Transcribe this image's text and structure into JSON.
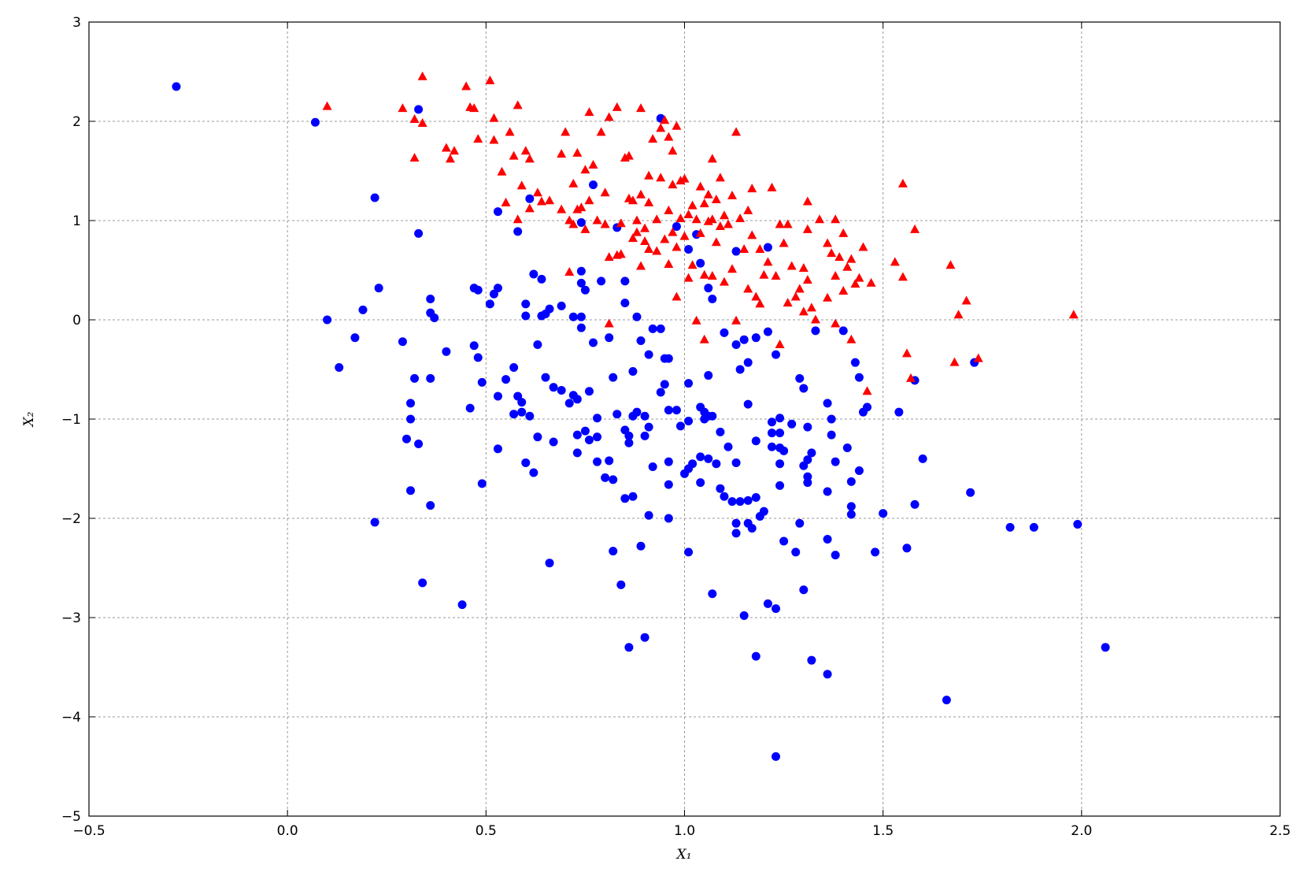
{
  "chart_data": {
    "type": "scatter",
    "x_label": "X₁",
    "y_label": "X₂",
    "xlim": [
      -0.5,
      2.5
    ],
    "ylim": [
      -5,
      3
    ],
    "xticks": [
      {
        "value": -0.5,
        "label": "−0.5"
      },
      {
        "value": 0,
        "label": "0.0"
      },
      {
        "value": 0.5,
        "label": "0.5"
      },
      {
        "value": 1,
        "label": "1.0"
      },
      {
        "value": 1.5,
        "label": "1.5"
      },
      {
        "value": 2,
        "label": "2.0"
      },
      {
        "value": 2.5,
        "label": "2.5"
      }
    ],
    "yticks": [
      {
        "value": -5,
        "label": "−5"
      },
      {
        "value": -4,
        "label": "−4"
      },
      {
        "value": -3,
        "label": "−3"
      },
      {
        "value": -2,
        "label": "−2"
      },
      {
        "value": -1,
        "label": "−1"
      },
      0,
      1,
      2,
      3
    ],
    "grid": true,
    "series": [
      {
        "color": "#0000ff",
        "marker": "o",
        "x": [
          -0.28,
          0.07,
          0.33,
          0.22,
          0.33,
          0.1,
          0.13,
          0.17,
          0.19,
          0.23,
          0.29,
          0.3,
          0.31,
          0.31,
          0.32,
          0.33,
          0.31,
          0.22,
          0.34,
          0.36,
          0.36,
          0.37,
          0.36,
          0.36,
          0.4,
          0.44,
          0.46,
          0.47,
          0.48,
          0.47,
          0.48,
          0.49,
          0.49,
          0.51,
          0.52,
          0.53,
          0.53,
          0.53,
          0.53,
          0.55,
          0.57,
          0.57,
          0.58,
          0.58,
          0.59,
          0.59,
          0.6,
          0.6,
          0.6,
          0.61,
          0.61,
          0.62,
          0.62,
          0.63,
          0.63,
          0.64,
          0.64,
          0.65,
          0.65,
          0.66,
          0.66,
          0.67,
          0.67,
          0.69,
          0.69,
          0.71,
          0.72,
          0.72,
          0.73,
          0.73,
          0.73,
          0.74,
          0.74,
          0.74,
          0.74,
          0.74,
          0.75,
          0.75,
          0.76,
          0.76,
          0.77,
          0.77,
          0.78,
          0.78,
          0.78,
          0.79,
          0.8,
          0.81,
          0.81,
          0.82,
          0.82,
          0.82,
          0.83,
          0.83,
          0.84,
          0.85,
          0.85,
          0.85,
          0.85,
          0.86,
          0.86,
          0.86,
          0.87,
          0.87,
          0.87,
          0.88,
          0.88,
          0.89,
          0.89,
          0.9,
          0.9,
          0.9,
          0.91,
          0.91,
          0.91,
          0.92,
          0.92,
          0.94,
          0.94,
          0.94,
          0.95,
          0.95,
          0.96,
          0.96,
          0.96,
          0.96,
          0.96,
          0.98,
          0.98,
          0.99,
          1.0,
          1.01,
          1.01,
          1.01,
          1.01,
          1.01,
          1.02,
          1.03,
          1.04,
          1.04,
          1.04,
          1.04,
          1.05,
          1.05,
          1.06,
          1.06,
          1.06,
          1.06,
          1.07,
          1.07,
          1.07,
          1.08,
          1.09,
          1.09,
          1.1,
          1.1,
          1.11,
          1.12,
          1.13,
          1.13,
          1.13,
          1.13,
          1.14,
          1.13,
          1.14,
          1.15,
          1.15,
          1.16,
          1.16,
          1.16,
          1.16,
          1.17,
          1.18,
          1.18,
          1.18,
          1.18,
          1.19,
          1.2,
          1.21,
          1.21,
          1.21,
          1.22,
          1.22,
          1.22,
          1.23,
          1.23,
          1.23,
          1.24,
          1.24,
          1.24,
          1.24,
          1.24,
          1.25,
          1.25,
          1.27,
          1.28,
          1.29,
          1.29,
          1.3,
          1.3,
          1.3,
          1.31,
          1.31,
          1.31,
          1.31,
          1.32,
          1.32,
          1.33,
          1.36,
          1.36,
          1.36,
          1.36,
          1.37,
          1.37,
          1.38,
          1.38,
          1.4,
          1.41,
          1.42,
          1.42,
          1.42,
          1.43,
          1.44,
          1.44,
          1.45,
          1.46,
          1.48,
          1.5,
          1.54,
          1.56,
          1.58,
          1.58,
          1.6,
          1.66,
          1.72,
          1.73,
          1.82,
          1.88,
          1.99,
          2.06
        ],
        "y": [
          2.35,
          1.99,
          2.12,
          1.23,
          0.87,
          0.0,
          -0.48,
          -0.18,
          0.1,
          0.32,
          -0.22,
          -1.2,
          -0.84,
          -1.0,
          -0.59,
          -1.25,
          -1.72,
          -2.04,
          -2.65,
          0.07,
          0.21,
          0.02,
          -0.59,
          -1.87,
          -0.32,
          -2.87,
          -0.89,
          0.32,
          0.3,
          -0.26,
          -0.38,
          -0.63,
          -1.65,
          0.16,
          0.26,
          0.32,
          -0.77,
          -1.3,
          1.09,
          -0.6,
          -0.48,
          -0.95,
          -0.77,
          0.89,
          -0.83,
          -0.93,
          0.04,
          0.16,
          -1.44,
          1.22,
          -0.97,
          0.46,
          -1.54,
          -0.25,
          -1.18,
          0.41,
          0.04,
          0.06,
          -0.58,
          -2.45,
          0.11,
          -0.68,
          -1.23,
          0.14,
          -0.71,
          -0.84,
          0.03,
          -0.76,
          -0.8,
          -1.16,
          -1.34,
          0.49,
          0.37,
          0.98,
          0.03,
          -0.08,
          -1.12,
          0.3,
          -0.72,
          -1.21,
          1.36,
          -0.23,
          -1.18,
          -1.43,
          -0.99,
          0.39,
          -1.59,
          -0.18,
          -1.42,
          -0.58,
          -1.61,
          -2.33,
          0.93,
          -0.95,
          -2.67,
          0.39,
          0.17,
          -1.11,
          -1.8,
          -3.3,
          -1.17,
          -1.24,
          -0.52,
          -0.97,
          -1.78,
          -0.93,
          0.03,
          -2.28,
          -0.21,
          -3.2,
          -0.97,
          -1.17,
          -0.35,
          -1.08,
          -1.97,
          -0.09,
          -1.48,
          -0.09,
          -0.73,
          2.03,
          -0.39,
          -0.65,
          -0.39,
          -0.91,
          -1.66,
          -1.43,
          -2.0,
          0.94,
          -0.91,
          -1.07,
          -1.55,
          -1.02,
          -1.5,
          -0.64,
          -2.34,
          0.71,
          -1.45,
          0.86,
          0.57,
          -0.88,
          -1.64,
          -1.38,
          -1.0,
          -0.93,
          -0.97,
          0.32,
          -0.56,
          -1.4,
          0.21,
          -2.76,
          -0.97,
          -1.45,
          -1.13,
          -1.7,
          -1.78,
          -0.13,
          -1.28,
          -1.83,
          -0.25,
          -1.44,
          -2.05,
          -2.15,
          -1.83,
          0.69,
          -0.5,
          -2.98,
          -0.2,
          -0.43,
          -0.85,
          -1.82,
          -2.05,
          -2.1,
          -3.39,
          -0.18,
          -1.22,
          -1.79,
          -1.98,
          -1.93,
          0.73,
          -0.12,
          -2.86,
          -1.14,
          -1.03,
          -1.28,
          -4.4,
          -2.91,
          -0.35,
          -0.99,
          -1.14,
          -1.29,
          -1.45,
          -1.67,
          -2.23,
          -1.32,
          -1.05,
          -2.34,
          -0.59,
          -2.05,
          -0.69,
          -1.47,
          -2.72,
          -1.08,
          -1.41,
          -1.58,
          -1.64,
          -3.43,
          -1.34,
          -0.11,
          -0.84,
          -1.73,
          -2.21,
          -3.57,
          -1.0,
          -1.16,
          -1.43,
          -2.37,
          -0.11,
          -1.29,
          -1.63,
          -1.88,
          -1.96,
          -0.43,
          -0.58,
          -1.52,
          -0.93,
          -0.88,
          -2.34,
          -1.95,
          -0.93,
          -2.3,
          -1.86,
          -0.61,
          -1.4,
          -3.83,
          -1.74,
          -0.43,
          -2.09,
          -2.09,
          -2.06,
          -3.3
        ]
      },
      {
        "color": "#ff0000",
        "marker": "^",
        "x": [
          0.1,
          0.29,
          0.32,
          0.32,
          0.34,
          0.34,
          0.4,
          0.41,
          0.42,
          0.45,
          0.46,
          0.47,
          0.48,
          0.51,
          0.52,
          0.52,
          0.54,
          0.55,
          0.56,
          0.57,
          0.58,
          0.58,
          0.59,
          0.6,
          0.61,
          0.61,
          0.63,
          0.64,
          0.66,
          0.69,
          0.69,
          0.7,
          0.71,
          0.71,
          0.72,
          0.72,
          0.73,
          0.73,
          0.74,
          0.75,
          0.75,
          0.76,
          0.76,
          0.77,
          0.78,
          0.79,
          0.8,
          0.8,
          0.81,
          0.81,
          0.81,
          0.83,
          0.83,
          0.84,
          0.84,
          0.85,
          0.86,
          0.86,
          0.87,
          0.87,
          0.88,
          0.88,
          0.89,
          0.89,
          0.89,
          0.9,
          0.9,
          0.91,
          0.91,
          0.91,
          0.92,
          0.93,
          0.93,
          0.94,
          0.94,
          0.95,
          0.95,
          0.96,
          0.96,
          0.96,
          0.97,
          0.97,
          0.97,
          0.98,
          0.98,
          0.98,
          0.99,
          0.99,
          1.0,
          1.0,
          1.01,
          1.01,
          1.02,
          1.02,
          1.03,
          1.03,
          1.04,
          1.04,
          1.05,
          1.05,
          1.05,
          1.06,
          1.06,
          1.07,
          1.07,
          1.07,
          1.08,
          1.08,
          1.09,
          1.09,
          1.1,
          1.1,
          1.11,
          1.12,
          1.12,
          1.13,
          1.13,
          1.14,
          1.15,
          1.16,
          1.16,
          1.17,
          1.17,
          1.18,
          1.19,
          1.19,
          1.2,
          1.21,
          1.22,
          1.23,
          1.24,
          1.24,
          1.25,
          1.26,
          1.26,
          1.27,
          1.28,
          1.29,
          1.3,
          1.3,
          1.31,
          1.31,
          1.31,
          1.32,
          1.33,
          1.34,
          1.36,
          1.36,
          1.37,
          1.38,
          1.38,
          1.38,
          1.39,
          1.4,
          1.4,
          1.41,
          1.42,
          1.42,
          1.43,
          1.44,
          1.45,
          1.46,
          1.47,
          1.53,
          1.55,
          1.55,
          1.56,
          1.57,
          1.58,
          1.67,
          1.68,
          1.69,
          1.71,
          1.74,
          1.98
        ],
        "y": [
          2.15,
          2.13,
          1.63,
          2.02,
          2.45,
          1.98,
          1.73,
          1.62,
          1.7,
          2.35,
          2.14,
          2.13,
          1.82,
          2.41,
          2.03,
          1.81,
          1.49,
          1.18,
          1.89,
          1.65,
          1.01,
          2.16,
          1.35,
          1.7,
          1.62,
          1.12,
          1.28,
          1.19,
          1.2,
          1.67,
          1.11,
          1.89,
          1.0,
          0.48,
          1.37,
          0.96,
          1.68,
          1.11,
          1.13,
          1.51,
          0.91,
          2.09,
          1.2,
          1.56,
          1.0,
          1.89,
          0.96,
          1.28,
          0.63,
          2.04,
          -0.04,
          0.65,
          2.14,
          0.66,
          0.97,
          1.63,
          1.65,
          1.22,
          0.82,
          1.2,
          1.0,
          0.88,
          2.13,
          0.54,
          1.26,
          0.92,
          0.79,
          1.45,
          1.18,
          0.71,
          1.82,
          1.01,
          0.69,
          1.93,
          1.43,
          0.81,
          2.01,
          1.84,
          0.56,
          1.1,
          1.7,
          0.88,
          1.36,
          1.95,
          0.23,
          0.73,
          1.4,
          1.02,
          0.84,
          1.42,
          1.06,
          0.42,
          1.15,
          0.55,
          1.01,
          -0.01,
          1.34,
          0.87,
          1.17,
          0.45,
          -0.2,
          1.26,
          0.99,
          1.01,
          1.62,
          0.44,
          1.21,
          0.78,
          0.94,
          1.43,
          1.05,
          0.38,
          0.96,
          1.25,
          0.51,
          1.89,
          -0.01,
          1.02,
          0.71,
          1.1,
          0.31,
          1.32,
          0.85,
          0.23,
          0.71,
          0.16,
          0.45,
          0.58,
          1.33,
          0.44,
          0.96,
          -0.25,
          0.77,
          0.96,
          0.17,
          0.54,
          0.23,
          0.31,
          0.52,
          0.08,
          1.19,
          0.91,
          0.4,
          0.12,
          0.0,
          1.01,
          0.77,
          0.22,
          0.67,
          1.01,
          0.44,
          -0.04,
          0.63,
          0.87,
          0.29,
          0.53,
          0.61,
          -0.2,
          0.36,
          0.42,
          0.73,
          -0.72,
          0.37,
          0.58,
          1.37,
          0.43,
          -0.34,
          -0.59,
          0.91,
          0.55,
          -0.43,
          0.05,
          0.19,
          -0.39,
          0.05
        ]
      }
    ]
  }
}
